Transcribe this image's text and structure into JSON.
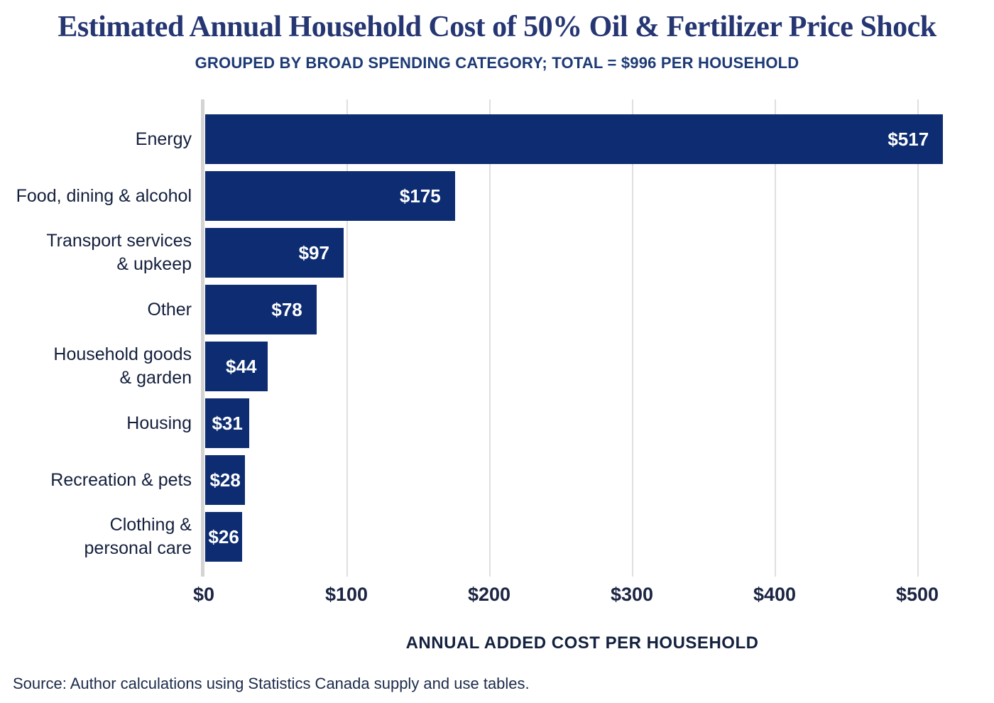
{
  "title": "Estimated Annual Household Cost of 50% Oil & Fertilizer Price Shock",
  "subtitle": "GROUPED BY BROAD SPENDING CATEGORY; TOTAL = $996 PER HOUSEHOLD",
  "source": "Source: Author calculations using Statistics Canada supply and use tables.",
  "chart_data": {
    "type": "bar",
    "orientation": "horizontal",
    "title": "Estimated Annual Household Cost of 50% Oil & Fertilizer Price Shock",
    "subtitle": "GROUPED BY BROAD SPENDING CATEGORY; TOTAL = $996 PER HOUSEHOLD",
    "categories": [
      "Energy",
      "Food, dining & alcohol",
      "Transport services & upkeep",
      "Other",
      "Household goods & garden",
      "Housing",
      "Recreation & pets",
      "Clothing & personal care"
    ],
    "category_display_lines": [
      [
        "Energy"
      ],
      [
        "Food, dining & alcohol"
      ],
      [
        "Transport services",
        "& upkeep"
      ],
      [
        "Other"
      ],
      [
        "Household goods",
        "& garden"
      ],
      [
        "Housing"
      ],
      [
        "Recreation & pets"
      ],
      [
        "Clothing &",
        "personal care"
      ]
    ],
    "values": [
      517,
      175,
      97,
      78,
      44,
      31,
      28,
      26
    ],
    "value_labels": [
      "$517",
      "$175",
      "$97",
      "$78",
      "$44",
      "$31",
      "$28",
      "$26"
    ],
    "total_per_household": 996,
    "xlabel": "ANNUAL ADDED COST PER HOUSEHOLD",
    "ylabel": "",
    "x_ticks": [
      {
        "value": 0,
        "label": "$0"
      },
      {
        "value": 100,
        "label": "$100"
      },
      {
        "value": 200,
        "label": "$200"
      },
      {
        "value": 300,
        "label": "$300"
      },
      {
        "value": 400,
        "label": "$400"
      },
      {
        "value": 500,
        "label": "$500"
      }
    ],
    "xlim": [
      0,
      550
    ],
    "grid": "vertical gridlines at each $100, drawn behind bars",
    "legend": "none",
    "bar_color": "#0D2C71",
    "value_label_color": "#FFFFFF"
  },
  "colors": {
    "background": "#FFFFFF",
    "title": "#253672",
    "subtitle": "#1D3A75",
    "category_label": "#141F3D",
    "tick_label": "#1B2442",
    "axis_label": "#14213F",
    "source": "#1C2B4A",
    "gridline": "#DFDFDF",
    "axis_line": "#D4D4D4",
    "bar": "#0D2C71",
    "value_label": "#FFFFFF"
  }
}
